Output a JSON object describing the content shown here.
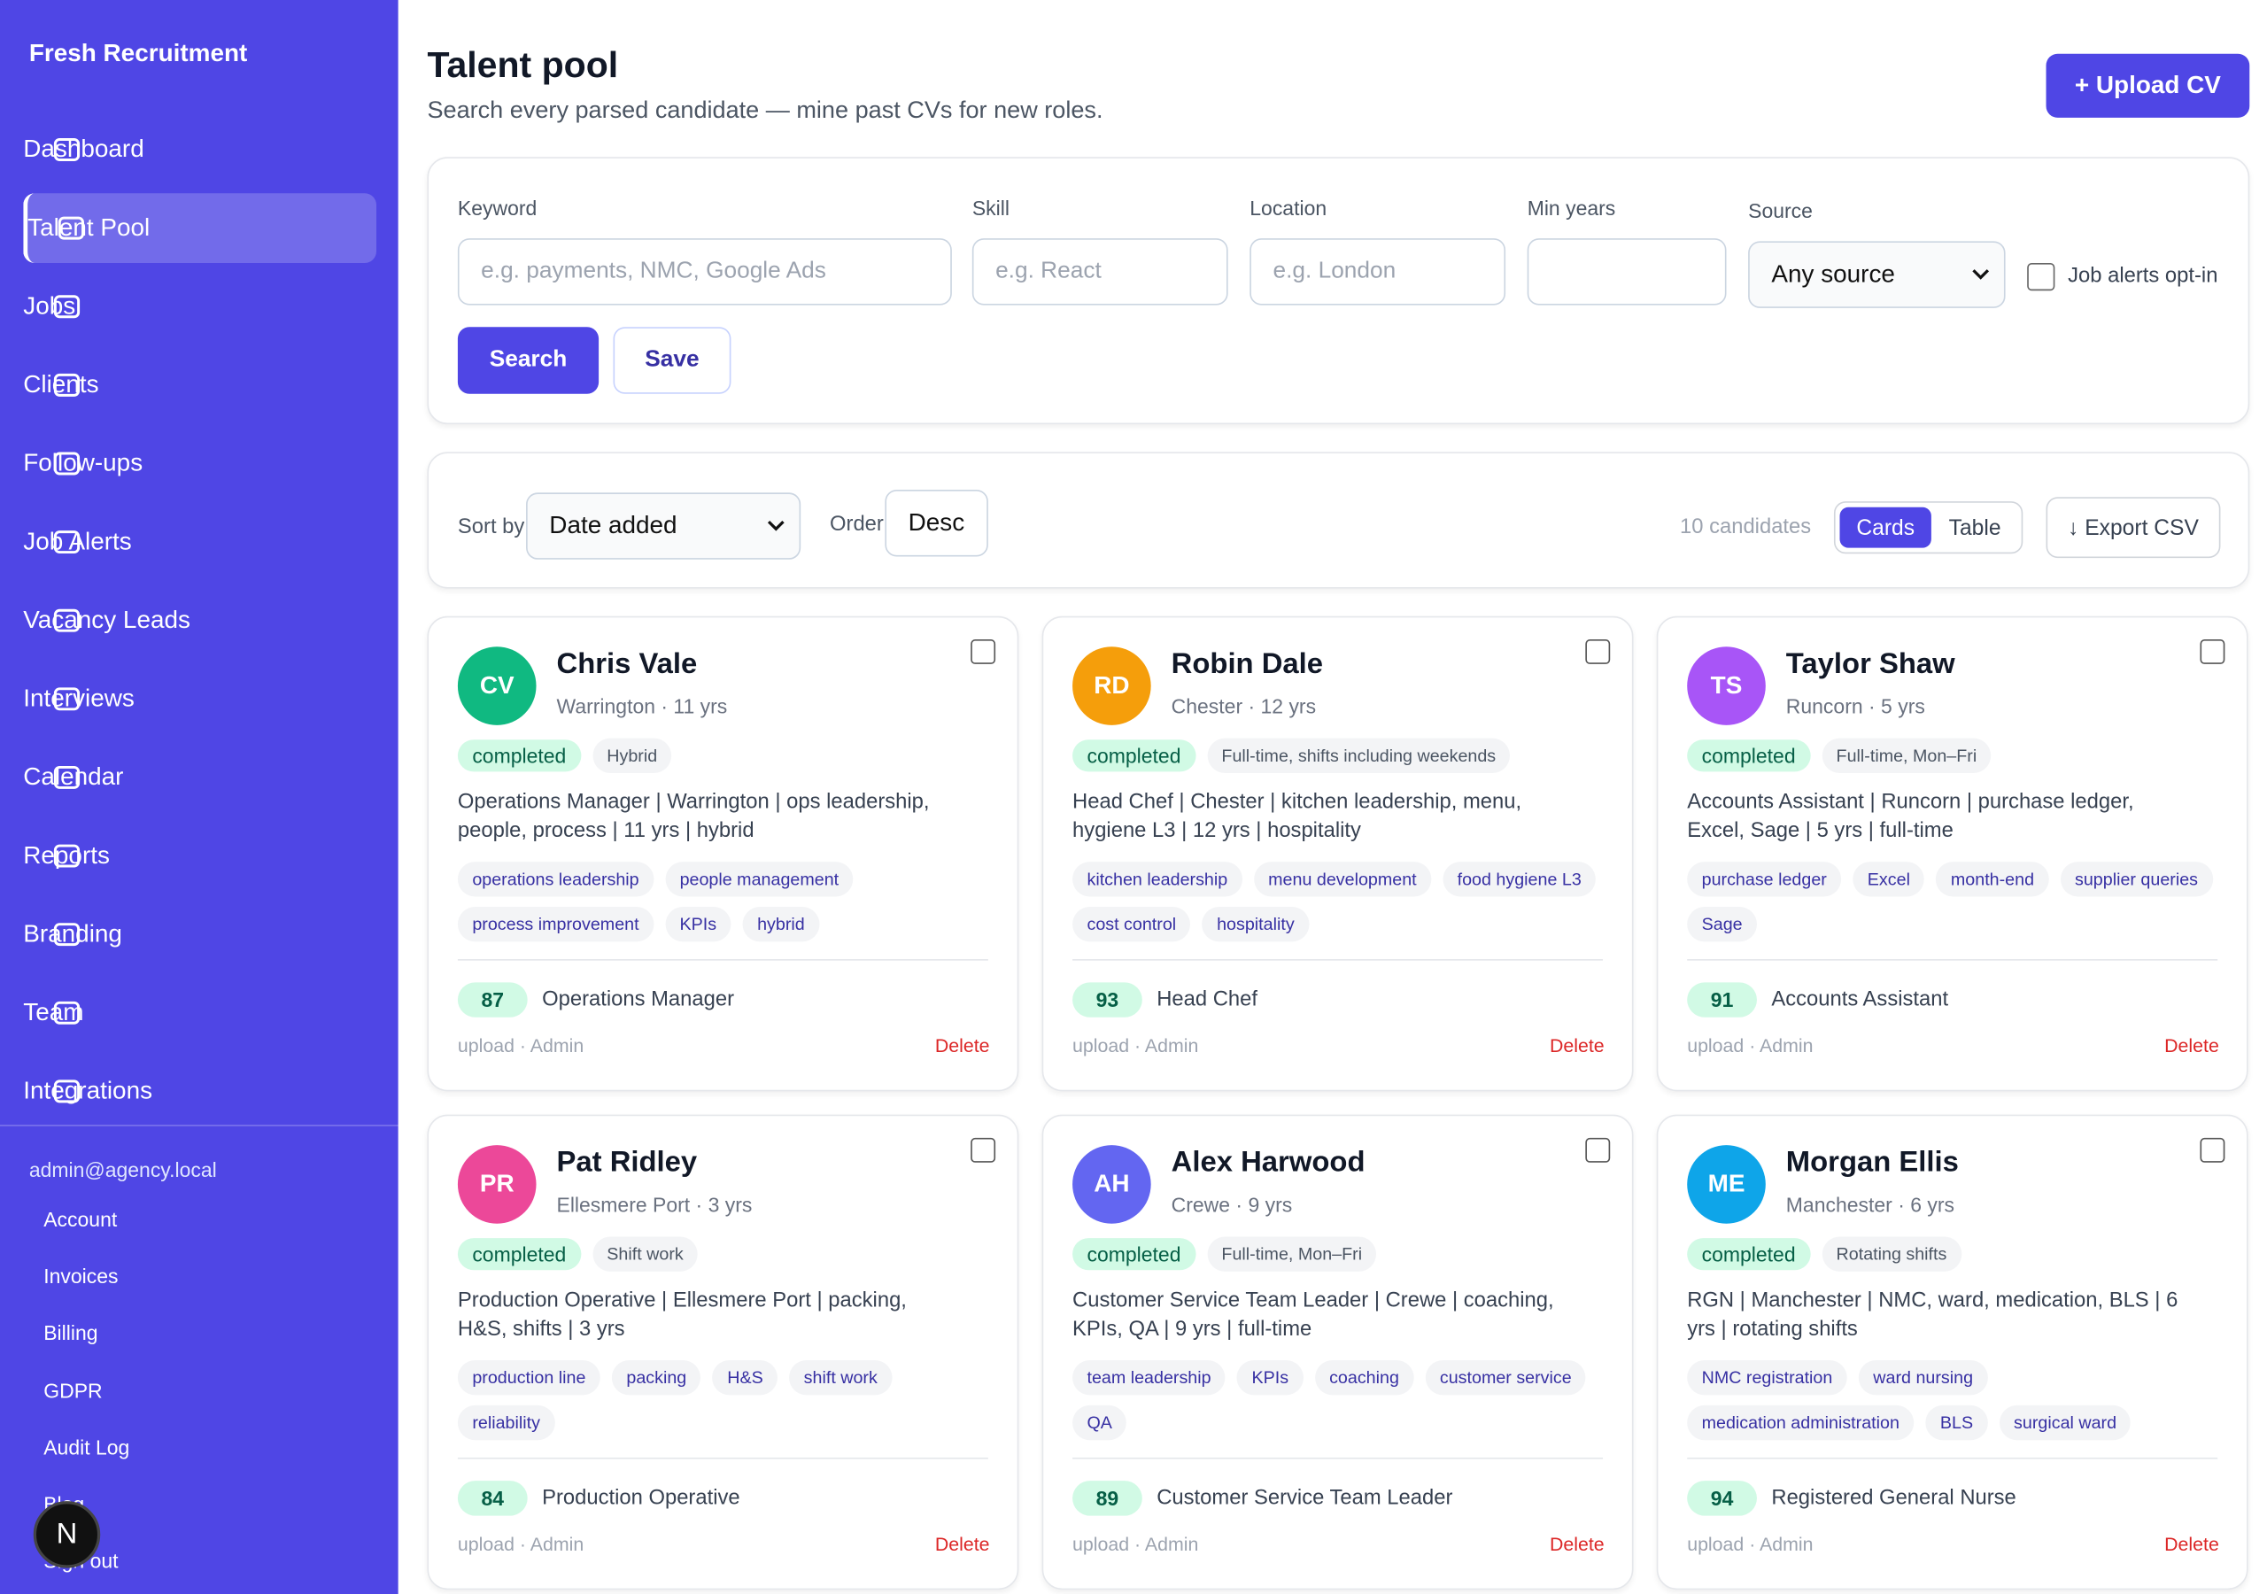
{
  "sidebar": {
    "brand": "Fresh Recruitment",
    "nav": [
      "Dashboard",
      "Talent Pool",
      "Jobs",
      "Clients",
      "Follow-ups",
      "Job Alerts",
      "Vacancy Leads",
      "Interviews",
      "Calendar",
      "Reports",
      "Branding",
      "Team",
      "Integrations"
    ],
    "active": 1,
    "email": "admin@agency.local",
    "links": [
      "Account",
      "Invoices",
      "Billing",
      "GDPR",
      "Audit Log",
      "Blog",
      "Sign out"
    ],
    "badge": "N"
  },
  "header": {
    "title": "Talent pool",
    "subtitle": "Search every parsed candidate — mine past CVs for new roles.",
    "upload": "+ Upload CV"
  },
  "filters": {
    "fields": [
      {
        "label": "Keyword",
        "placeholder": "e.g. payments, NMC, Google Ads"
      },
      {
        "label": "Skill",
        "placeholder": "e.g. React"
      },
      {
        "label": "Location",
        "placeholder": "e.g. London"
      },
      {
        "label": "Min years",
        "placeholder": ""
      }
    ],
    "source_label": "Source",
    "source_value": "Any source",
    "opt_in": "Job alerts opt-in",
    "search": "Search",
    "save": "Save"
  },
  "toolbar": {
    "sort_label": "Sort by",
    "sort_value": "Date added",
    "order_label": "Order",
    "order_value": "Desc",
    "count": "10 candidates",
    "views": [
      "Cards",
      "Table"
    ],
    "export": "↓ Export CSV"
  },
  "cards": [
    {
      "initials": "CV",
      "color": "#10b981",
      "name": "Chris Vale",
      "meta": "Warrington · 11 yrs",
      "status": "completed",
      "pattern": "Hybrid",
      "summary": "Operations Manager | Warrington | ops leadership, people, process | 11 yrs | hybrid",
      "skills": [
        "operations leadership",
        "people management",
        "process improvement",
        "KPIs",
        "hybrid"
      ],
      "score": 87,
      "role": "Operations Manager",
      "source": "upload · Admin",
      "delete": "Delete"
    },
    {
      "initials": "RD",
      "color": "#f59e0b",
      "name": "Robin Dale",
      "meta": "Chester · 12 yrs",
      "status": "completed",
      "pattern": "Full-time, shifts including weekends",
      "summary": "Head Chef | Chester | kitchen leadership, menu, hygiene L3 | 12 yrs | hospitality",
      "skills": [
        "kitchen leadership",
        "menu development",
        "food hygiene L3",
        "cost control",
        "hospitality"
      ],
      "score": 93,
      "role": "Head Chef",
      "source": "upload · Admin",
      "delete": "Delete"
    },
    {
      "initials": "TS",
      "color": "#a855f7",
      "name": "Taylor Shaw",
      "meta": "Runcorn · 5 yrs",
      "status": "completed",
      "pattern": "Full-time, Mon–Fri",
      "summary": "Accounts Assistant | Runcorn | purchase ledger, Excel, Sage | 5 yrs | full-time",
      "skills": [
        "purchase ledger",
        "Excel",
        "month-end",
        "supplier queries",
        "Sage"
      ],
      "score": 91,
      "role": "Accounts Assistant",
      "source": "upload · Admin",
      "delete": "Delete"
    },
    {
      "initials": "PR",
      "color": "#ec4899",
      "name": "Pat Ridley",
      "meta": "Ellesmere Port · 3 yrs",
      "status": "completed",
      "pattern": "Shift work",
      "summary": "Production Operative | Ellesmere Port | packing, H&S, shifts | 3 yrs",
      "skills": [
        "production line",
        "packing",
        "H&S",
        "shift work",
        "reliability"
      ],
      "score": 84,
      "role": "Production Operative",
      "source": "upload · Admin",
      "delete": "Delete"
    },
    {
      "initials": "AH",
      "color": "#6366f1",
      "name": "Alex Harwood",
      "meta": "Crewe · 9 yrs",
      "status": "completed",
      "pattern": "Full-time, Mon–Fri",
      "summary": "Customer Service Team Leader | Crewe | coaching, KPIs, QA | 9 yrs | full-time",
      "skills": [
        "team leadership",
        "KPIs",
        "coaching",
        "customer service",
        "QA"
      ],
      "score": 89,
      "role": "Customer Service Team Leader",
      "source": "upload · Admin",
      "delete": "Delete"
    },
    {
      "initials": "ME",
      "color": "#0ea5e9",
      "name": "Morgan Ellis",
      "meta": "Manchester · 6 yrs",
      "status": "completed",
      "pattern": "Rotating shifts",
      "summary": "RGN | Manchester | NMC, ward, medication, BLS | 6 yrs | rotating shifts",
      "skills": [
        "NMC registration",
        "ward nursing",
        "medication administration",
        "BLS",
        "surgical ward"
      ],
      "score": 94,
      "role": "Registered General Nurse",
      "source": "upload · Admin",
      "delete": "Delete"
    }
  ]
}
